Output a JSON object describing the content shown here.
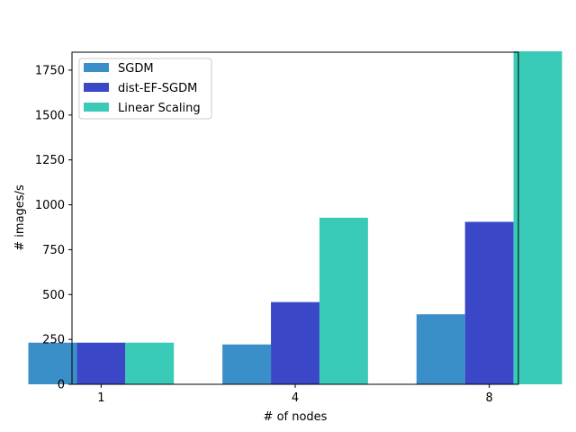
{
  "chart_data": {
    "type": "bar",
    "title": "",
    "xlabel": "# of nodes",
    "ylabel": "# images/s",
    "categories": [
      "1",
      "4",
      "8"
    ],
    "ylim": [
      0,
      1850
    ],
    "yticks": [
      0,
      250,
      500,
      750,
      1000,
      1250,
      1500,
      1750
    ],
    "grid": false,
    "legend_position": "top-left",
    "series": [
      {
        "name": "SGDM",
        "color": "#3a8fc8",
        "values": [
          232,
          222,
          390
        ]
      },
      {
        "name": "dist-EF-SGDM",
        "color": "#3a48c8",
        "values": [
          232,
          458,
          905
        ]
      },
      {
        "name": "Linear Scaling",
        "color": "#3acab8",
        "values": [
          232,
          928,
          1855
        ]
      }
    ]
  }
}
